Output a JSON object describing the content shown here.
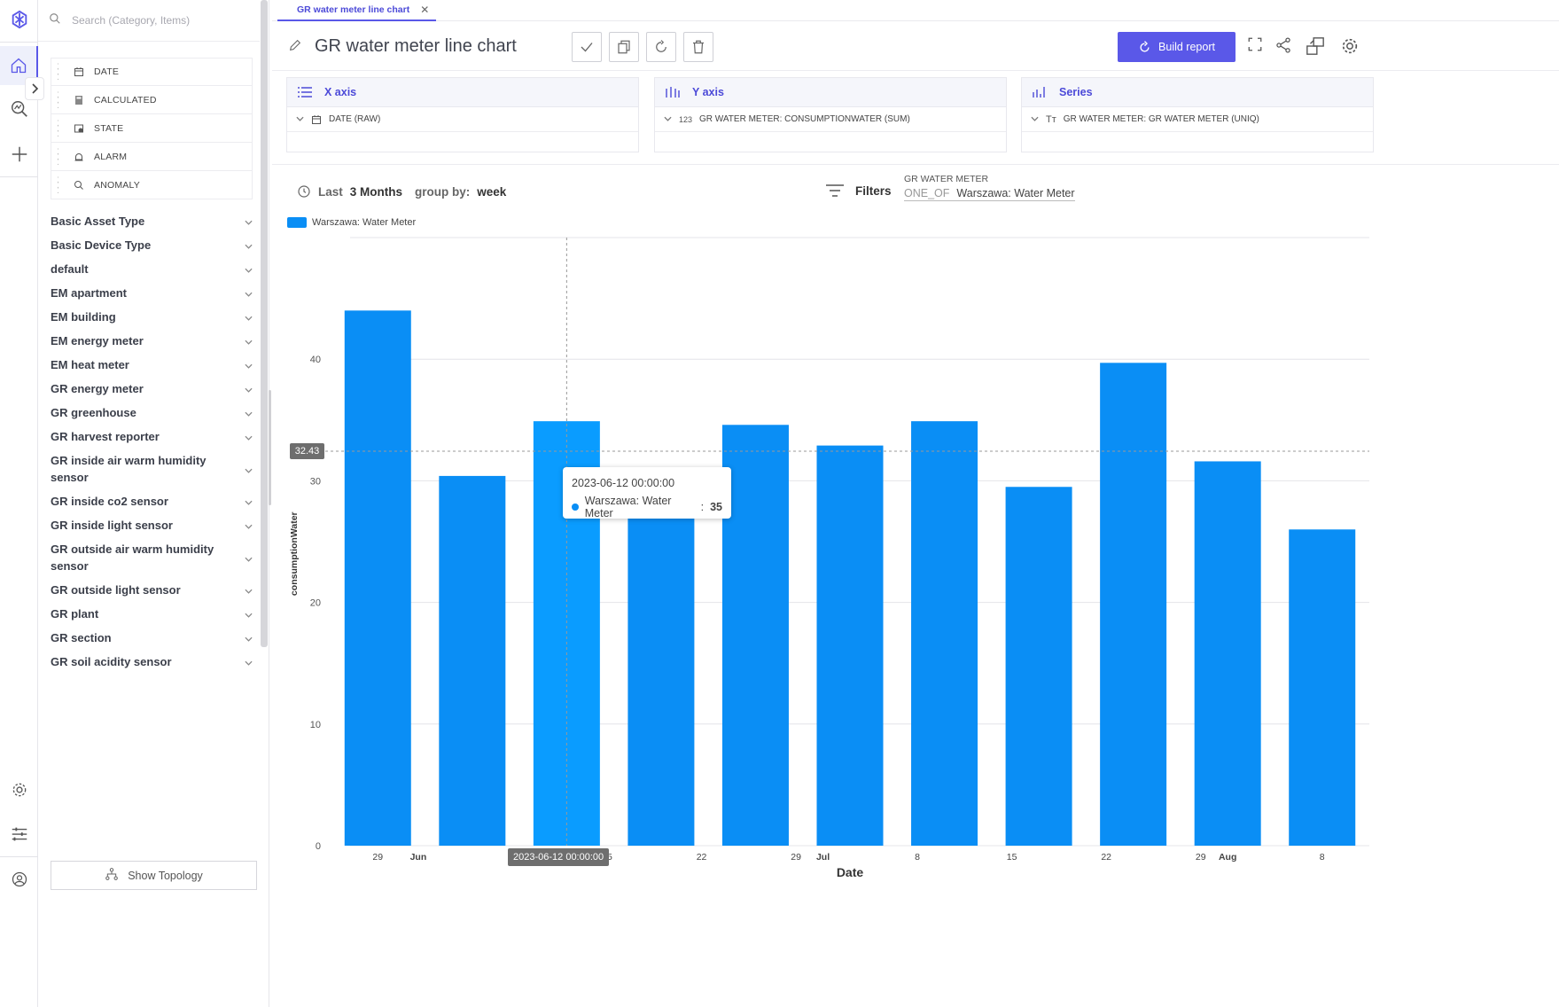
{
  "search": {
    "placeholder": "Search (Category, Items)"
  },
  "fields": [
    {
      "label": "DATE",
      "icon": "calendar-icon"
    },
    {
      "label": "CALCULATED",
      "icon": "calculator-icon"
    },
    {
      "label": "STATE",
      "icon": "state-icon"
    },
    {
      "label": "ALARM",
      "icon": "alarm-icon"
    },
    {
      "label": "ANOMALY",
      "icon": "anomaly-icon"
    }
  ],
  "categories": [
    "Basic Asset Type",
    "Basic Device Type",
    "default",
    "EM apartment",
    "EM building",
    "EM energy meter",
    "EM heat meter",
    "GR energy meter",
    "GR greenhouse",
    "GR harvest reporter",
    "GR inside air warm humidity sensor",
    "GR inside co2 sensor",
    "GR inside light sensor",
    "GR outside air warm humidity sensor",
    "GR outside light sensor",
    "GR plant",
    "GR section",
    "GR soil acidity sensor"
  ],
  "show_topology": "Show Topology",
  "tab": {
    "label": "GR water meter line chart"
  },
  "title": "GR water meter line chart",
  "build_report": "Build report",
  "axes": {
    "x": {
      "header": "X axis",
      "field": "DATE (RAW)"
    },
    "y": {
      "header": "Y axis",
      "field": "GR WATER METER: CONSUMPTIONWATER (SUM)"
    },
    "series": {
      "header": "Series",
      "field": "GR WATER METER: GR WATER METER (UNIQ)"
    }
  },
  "period": {
    "prefix": "Last",
    "range": "3 Months",
    "group_label": "group by:",
    "group": "week"
  },
  "filters": {
    "label": "Filters",
    "field": "GR WATER METER",
    "op": "ONE_OF",
    "value": "Warszawa: Water Meter"
  },
  "chart_data": {
    "type": "bar",
    "series": [
      {
        "name": "Warszawa: Water Meter",
        "values": [
          44,
          30.4,
          34.9,
          27.5,
          34.6,
          32.9,
          34.9,
          29.5,
          39.7,
          31.6,
          26
        ]
      }
    ],
    "x": [
      "2023-05-29",
      "2023-06-05",
      "2023-06-12",
      "2023-06-19",
      "2023-06-26",
      "2023-07-03",
      "2023-07-10",
      "2023-07-17",
      "2023-07-24",
      "2023-07-31",
      "2023-08-07"
    ],
    "x_tick_labels": [
      {
        "label": "29",
        "bold": false
      },
      {
        "label": "Jun",
        "bold": true
      },
      {
        "label": "8",
        "bold": false
      },
      {
        "label": "15",
        "bold": false
      },
      {
        "label": "22",
        "bold": false
      },
      {
        "label": "29",
        "bold": false
      },
      {
        "label": "Jul",
        "bold": true
      },
      {
        "label": "8",
        "bold": false
      },
      {
        "label": "15",
        "bold": false
      },
      {
        "label": "22",
        "bold": false
      },
      {
        "label": "29",
        "bold": false
      },
      {
        "label": "Aug",
        "bold": true
      },
      {
        "label": "8",
        "bold": false
      }
    ],
    "xlabel": "Date",
    "ylabel": "consumptionWater",
    "ylim": [
      0,
      50
    ],
    "yticks": [
      0,
      10,
      20,
      30,
      40
    ],
    "color": "#0a8ef5",
    "highlight_color": "#0a9cff",
    "highlight_index": 2,
    "crosshair": {
      "y_value": 32.43,
      "y_label": "32.43",
      "x_label": "2023-06-12 00:00:00"
    },
    "tooltip": {
      "date": "2023-06-12 00:00:00",
      "series": "Warszawa: Water Meter",
      "value": "35"
    },
    "legend": "top-left",
    "grid": true
  }
}
